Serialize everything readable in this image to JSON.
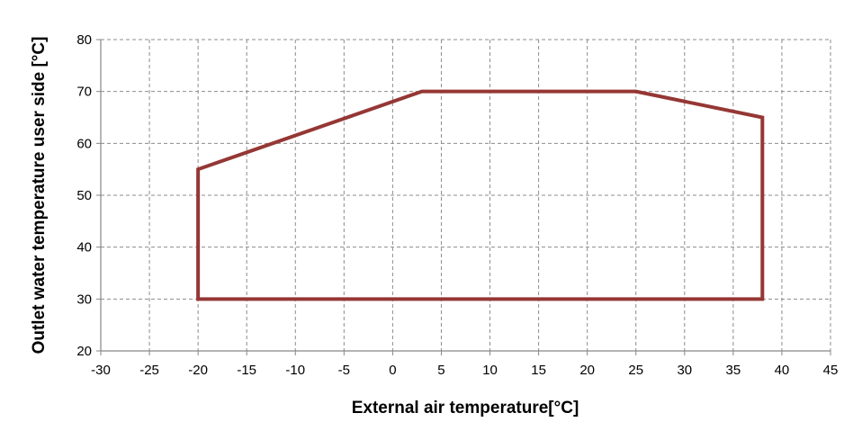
{
  "chart_data": {
    "type": "line",
    "title": "",
    "xlabel": "External air temperature[°C]",
    "ylabel": "Outlet water temperature user side [°C]",
    "xlim": [
      -30,
      45
    ],
    "ylim": [
      20,
      80
    ],
    "xticks": [
      -30,
      -25,
      -20,
      -15,
      -10,
      -5,
      0,
      5,
      10,
      15,
      20,
      25,
      30,
      35,
      40,
      45
    ],
    "yticks": [
      20,
      30,
      40,
      50,
      60,
      70,
      80
    ],
    "grid": true,
    "legend": "none",
    "series": [
      {
        "color": "#953735",
        "closed": true,
        "x": [
          -20,
          -20,
          3,
          25,
          38,
          38,
          -20
        ],
        "y": [
          30,
          55,
          70,
          70,
          65,
          30,
          30
        ]
      }
    ]
  }
}
